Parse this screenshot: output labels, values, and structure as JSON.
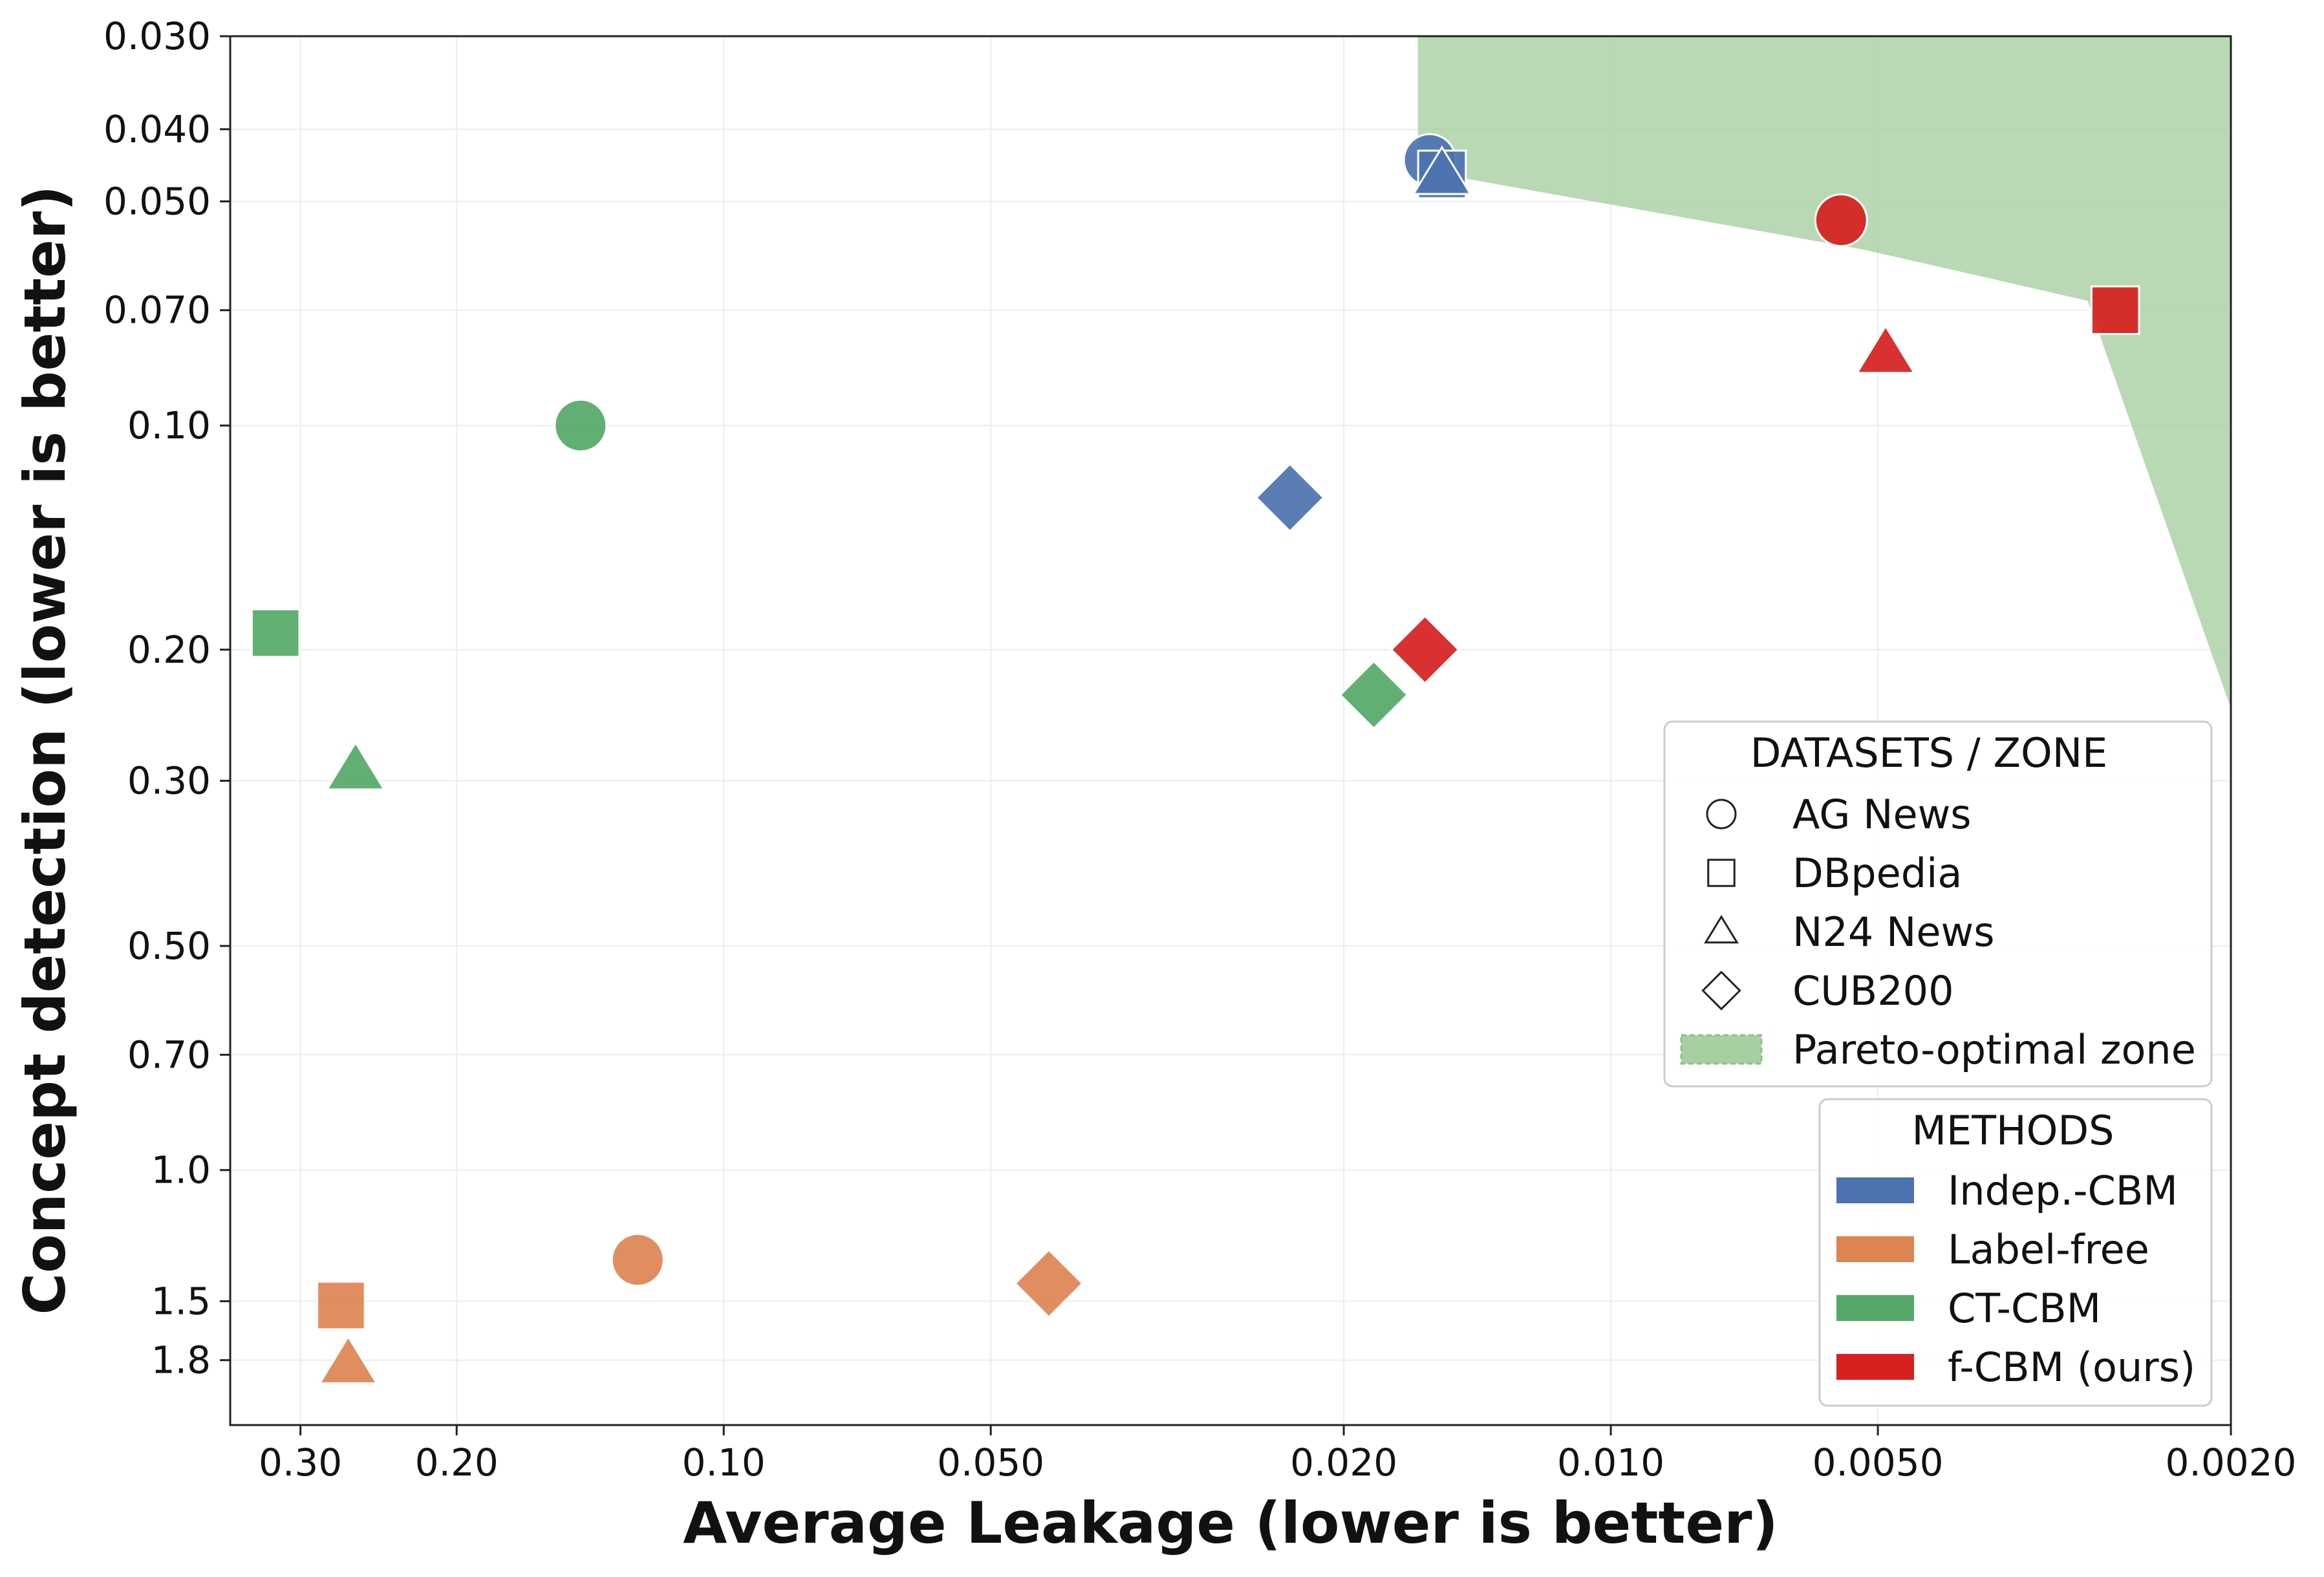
{
  "chart_data": {
    "type": "scatter",
    "title": "",
    "xlabel": "Average Leakage (lower is better)",
    "ylabel": "Concept detection (lower is better)",
    "xscale": "log-reversed",
    "yscale": "log-reversed",
    "xlim": [
      0.36,
      0.002
    ],
    "ylim": [
      0.03,
      2.2
    ],
    "grid": true,
    "x_ticks": [
      {
        "value": 0.3,
        "label": "0.30"
      },
      {
        "value": 0.2,
        "label": "0.20"
      },
      {
        "value": 0.1,
        "label": "0.10"
      },
      {
        "value": 0.05,
        "label": "0.050"
      },
      {
        "value": 0.02,
        "label": "0.020"
      },
      {
        "value": 0.01,
        "label": "0.010"
      },
      {
        "value": 0.005,
        "label": "0.0050"
      },
      {
        "value": 0.002,
        "label": "0.0020"
      }
    ],
    "y_ticks": [
      {
        "value": 0.03,
        "label": "0.030"
      },
      {
        "value": 0.04,
        "label": "0.040"
      },
      {
        "value": 0.05,
        "label": "0.050"
      },
      {
        "value": 0.07,
        "label": "0.070"
      },
      {
        "value": 0.1,
        "label": "0.10"
      },
      {
        "value": 0.2,
        "label": "0.20"
      },
      {
        "value": 0.3,
        "label": "0.30"
      },
      {
        "value": 0.5,
        "label": "0.50"
      },
      {
        "value": 0.7,
        "label": "0.70"
      },
      {
        "value": 1.0,
        "label": "1.0"
      },
      {
        "value": 1.5,
        "label": "1.5"
      },
      {
        "value": 1.8,
        "label": "1.8"
      }
    ],
    "pareto_zone": {
      "label": "Pareto-optimal zone",
      "color": "#a7cfa2",
      "boundary": [
        {
          "x": 0.0165,
          "y": 0.03
        },
        {
          "x": 0.0165,
          "y": 0.044
        },
        {
          "x": 0.0155,
          "y": 0.046
        },
        {
          "x": 0.0052,
          "y": 0.058
        },
        {
          "x": 0.0029,
          "y": 0.068
        },
        {
          "x": 0.002,
          "y": 0.24
        },
        {
          "x": 0.002,
          "y": 0.03
        }
      ]
    },
    "methods": [
      {
        "name": "Indep.-CBM",
        "color": "#4c72b0"
      },
      {
        "name": "Label-free",
        "color": "#dd8452"
      },
      {
        "name": "CT-CBM",
        "color": "#55a868"
      },
      {
        "name": "f-CBM (ours)",
        "color": "#d62020"
      }
    ],
    "datasets": [
      {
        "name": "AG News",
        "marker": "circle"
      },
      {
        "name": "DBpedia",
        "marker": "square"
      },
      {
        "name": "N24 News",
        "marker": "triangle"
      },
      {
        "name": "CUB200",
        "marker": "diamond"
      }
    ],
    "points": [
      {
        "method": "Indep.-CBM",
        "dataset": "AG News",
        "x": 0.016,
        "y": 0.044
      },
      {
        "method": "Indep.-CBM",
        "dataset": "DBpedia",
        "x": 0.0155,
        "y": 0.046
      },
      {
        "method": "Indep.-CBM",
        "dataset": "N24 News",
        "x": 0.0155,
        "y": 0.046
      },
      {
        "method": "Indep.-CBM",
        "dataset": "CUB200",
        "x": 0.023,
        "y": 0.125
      },
      {
        "method": "Label-free",
        "dataset": "AG News",
        "x": 0.125,
        "y": 1.32
      },
      {
        "method": "Label-free",
        "dataset": "DBpedia",
        "x": 0.27,
        "y": 1.52
      },
      {
        "method": "Label-free",
        "dataset": "N24 News",
        "x": 0.265,
        "y": 1.82
      },
      {
        "method": "Label-free",
        "dataset": "CUB200",
        "x": 0.043,
        "y": 1.42
      },
      {
        "method": "CT-CBM",
        "dataset": "AG News",
        "x": 0.145,
        "y": 0.1
      },
      {
        "method": "CT-CBM",
        "dataset": "DBpedia",
        "x": 0.32,
        "y": 0.19
      },
      {
        "method": "CT-CBM",
        "dataset": "N24 News",
        "x": 0.26,
        "y": 0.29
      },
      {
        "method": "CT-CBM",
        "dataset": "CUB200",
        "x": 0.0185,
        "y": 0.23
      },
      {
        "method": "f-CBM (ours)",
        "dataset": "AG News",
        "x": 0.0055,
        "y": 0.053
      },
      {
        "method": "f-CBM (ours)",
        "dataset": "DBpedia",
        "x": 0.0027,
        "y": 0.07
      },
      {
        "method": "f-CBM (ours)",
        "dataset": "N24 News",
        "x": 0.0049,
        "y": 0.08
      },
      {
        "method": "f-CBM (ours)",
        "dataset": "CUB200",
        "x": 0.0162,
        "y": 0.2
      }
    ],
    "legend_datasets": {
      "title": "DATASETS / ZONE",
      "position": "right",
      "items": [
        "AG News",
        "DBpedia",
        "N24 News",
        "CUB200",
        "Pareto-optimal zone"
      ]
    },
    "legend_methods": {
      "title": "METHODS",
      "position": "lower-right",
      "items": [
        "Indep.-CBM",
        "Label-free",
        "CT-CBM",
        "f-CBM (ours)"
      ]
    }
  }
}
